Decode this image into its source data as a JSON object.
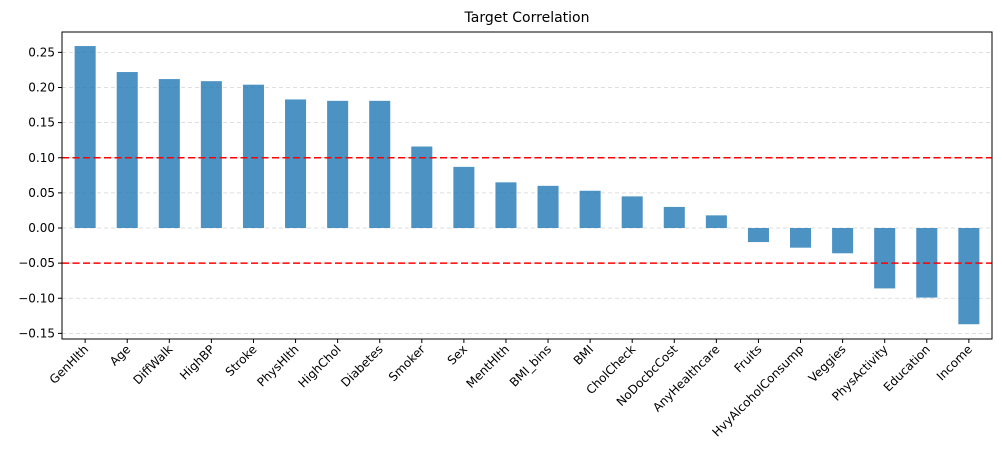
{
  "chart_data": {
    "type": "bar",
    "title": "Target Correlation",
    "xlabel": "",
    "ylabel": "",
    "categories": [
      "GenHlth",
      "Age",
      "DiffWalk",
      "HighBP",
      "Stroke",
      "PhysHlth",
      "HighChol",
      "Diabetes",
      "Smoker",
      "Sex",
      "MentHlth",
      "BMI_bins",
      "BMI",
      "CholCheck",
      "NoDocbcCost",
      "AnyHealthcare",
      "Fruits",
      "HvyAlcoholConsump",
      "Veggies",
      "PhysActivity",
      "Education",
      "Income"
    ],
    "values": [
      0.259,
      0.222,
      0.212,
      0.209,
      0.204,
      0.183,
      0.181,
      0.181,
      0.116,
      0.087,
      0.065,
      0.06,
      0.053,
      0.045,
      0.03,
      0.018,
      -0.02,
      -0.028,
      -0.036,
      -0.086,
      -0.099,
      -0.137
    ],
    "ylim": [
      -0.158,
      0.279
    ],
    "yticks": [
      -0.15,
      -0.1,
      -0.05,
      0.0,
      0.05,
      0.1,
      0.15,
      0.2,
      0.25
    ],
    "ytick_labels": [
      "−0.15",
      "−0.10",
      "−0.05",
      "0.00",
      "0.05",
      "0.10",
      "0.15",
      "0.20",
      "0.25"
    ],
    "reference_lines": [
      0.1,
      -0.05
    ],
    "grid": "y",
    "bar_color": "#1f77b4",
    "reference_line_color": "#ff0000"
  }
}
